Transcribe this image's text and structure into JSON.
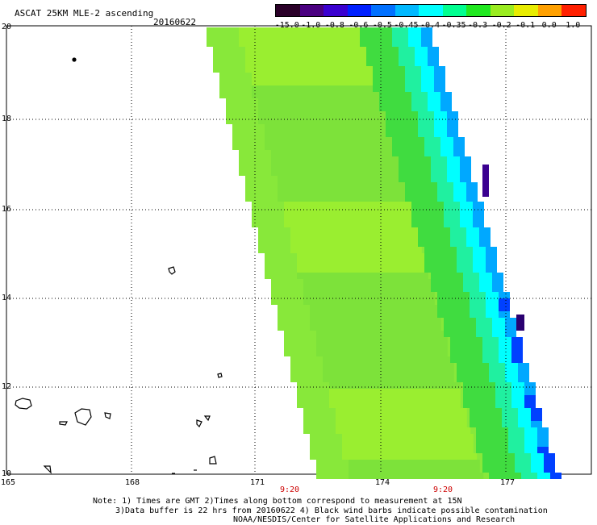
{
  "header": {
    "title": "ASCAT 25KM MLE-2 ascending",
    "date": "20160622"
  },
  "colorbar": {
    "labels": [
      "-15.0",
      "-1.0",
      "-0.8",
      "-0.6",
      "-0.5",
      "-0.45",
      "-0.4",
      "-0.35",
      "-0.3",
      "-0.2",
      "-0.1",
      "0.0",
      "1.0"
    ],
    "colors": [
      "#2a0028",
      "#4a0080",
      "#3a00d0",
      "#0020ff",
      "#0070ff",
      "#00b8ff",
      "#00ffff",
      "#00ff90",
      "#20e820",
      "#9aec20",
      "#e8ec00",
      "#ffa000",
      "#ff2000"
    ]
  },
  "axes": {
    "lat_labels": [
      "20",
      "18",
      "16",
      "14",
      "12",
      "10"
    ],
    "lon_labels": [
      "165",
      "168",
      "171",
      "174",
      "177"
    ],
    "time_labels": [
      "9:20",
      "9:20"
    ]
  },
  "notes": {
    "line1": "Note: 1) Times are GMT 2)Times along bottom correspond to measurement at 15N",
    "line2": "3)Data buffer is 22 hrs from 20160622 4) Black wind barbs indicate possible contamination",
    "line3": "NOAA/NESDIS/Center for Satellite Applications and Research"
  },
  "colors": {
    "swath_main": "#88e83a",
    "swath_edge": "#00ffff",
    "edge_dark": "#0000ff",
    "edge_purple": "#3a0090",
    "time_label": "#cc0000"
  }
}
